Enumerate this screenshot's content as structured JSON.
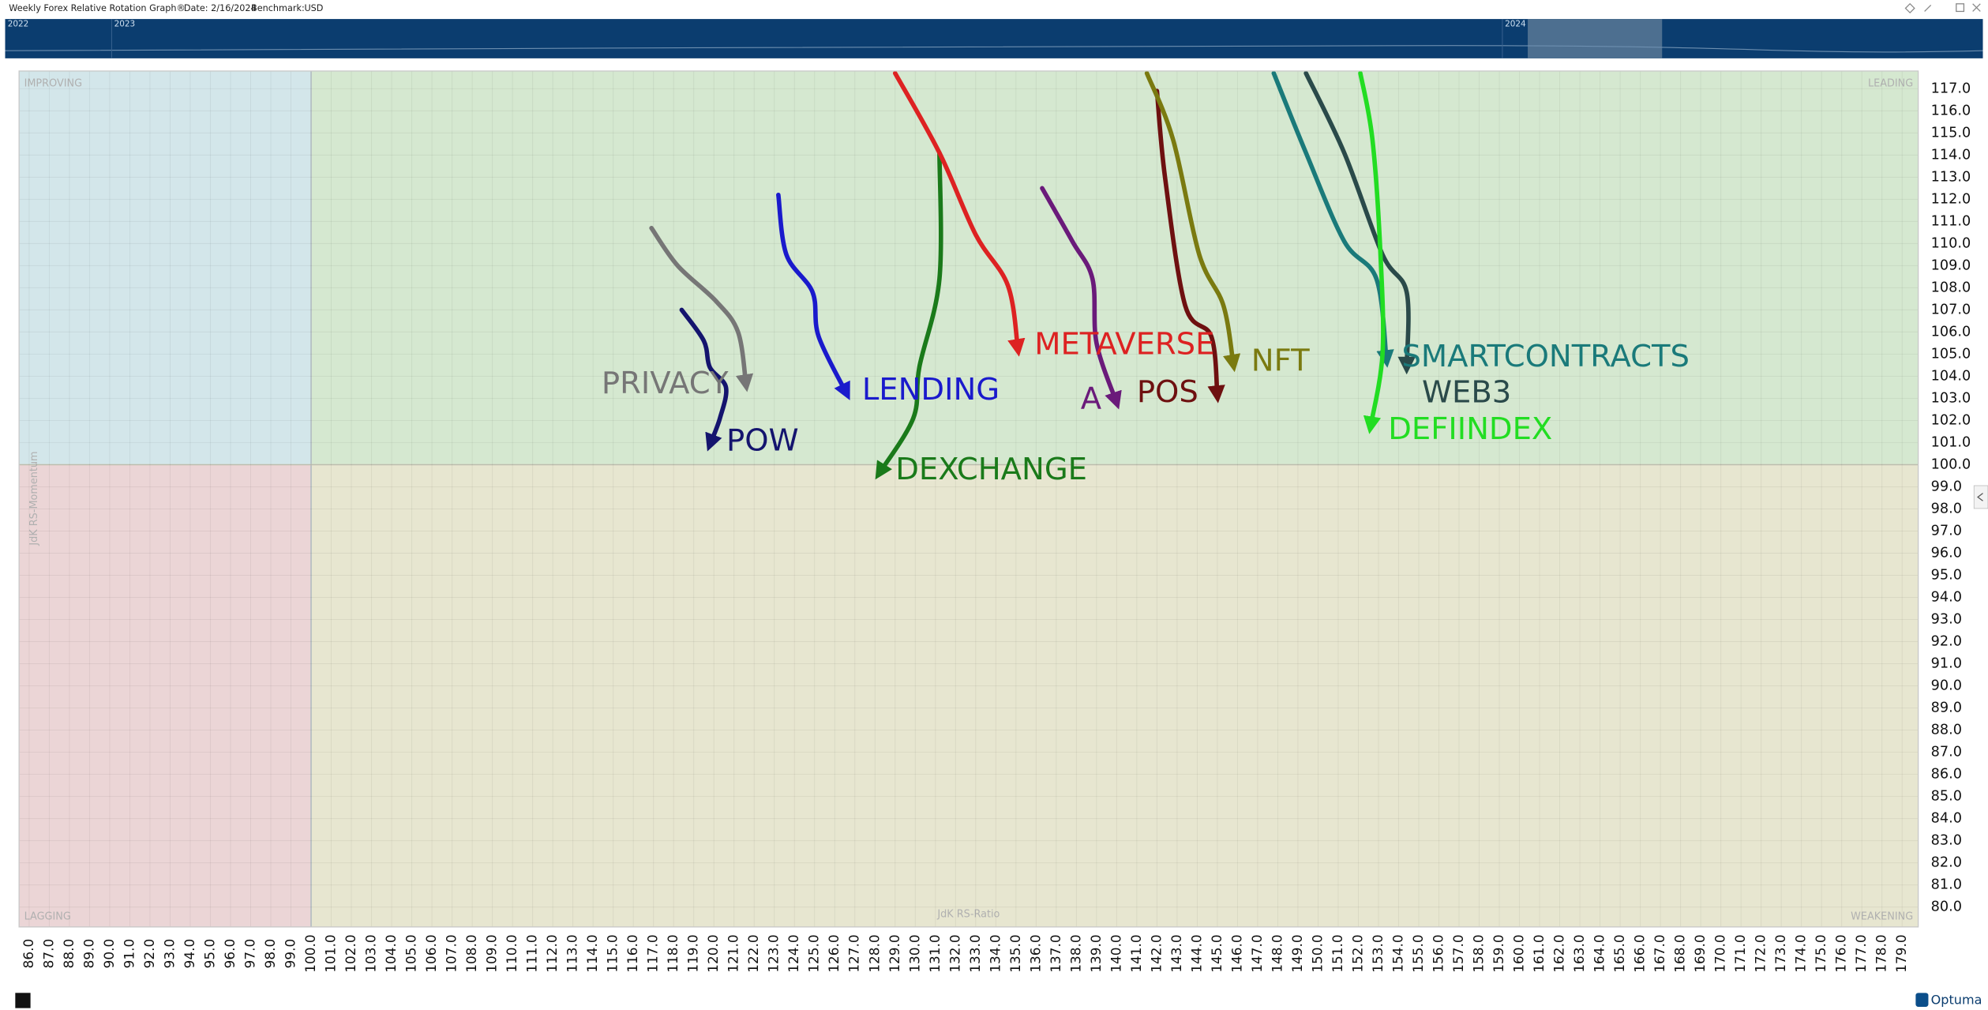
{
  "header": {
    "title": "Weekly Forex Relative Rotation Graph®",
    "date": "Date: 2/16/2024",
    "benchmark_label": "Benchmark:",
    "benchmark": "USD"
  },
  "timeline": {
    "labels": [
      "2022",
      "2023",
      "2024"
    ]
  },
  "brand": "Optuma",
  "chart_data": {
    "type": "line",
    "x_label": "JdK RS-Ratio",
    "y_label": "JdK RS-Momentum",
    "quadrants": {
      "improving": "IMPROVING",
      "leading": "LEADING",
      "lagging": "LAGGING",
      "weakening": "WEAKENING"
    },
    "quadrant_center": {
      "x": 100,
      "y": 100
    },
    "xlim": [
      85.5,
      179.8
    ],
    "ylim": [
      79.1,
      117.8
    ],
    "grid": true,
    "series": [
      {
        "name": "PRIVACY",
        "color": "#767676",
        "x": [
          116.9,
          118.2,
          120.1,
          121.2,
          121.6
        ],
        "y": [
          110.7,
          109.0,
          107.4,
          106.0,
          103.6
        ]
      },
      {
        "name": "POW",
        "color": "#14146e",
        "x": [
          118.4,
          119.5,
          119.8,
          120.6,
          120.3,
          119.8
        ],
        "y": [
          107.0,
          105.6,
          104.4,
          103.5,
          102.1,
          100.9
        ]
      },
      {
        "name": "LENDING",
        "color": "#1a1acc",
        "x": [
          123.2,
          123.6,
          124.9,
          125.2,
          126.6
        ],
        "y": [
          112.2,
          109.5,
          107.8,
          105.8,
          103.2
        ]
      },
      {
        "name": "DEXCHANGE",
        "color": "#1a7a1a",
        "x": [
          131.2,
          131.2,
          130.2,
          129.9,
          128.2
        ],
        "y": [
          114.1,
          108.4,
          104.4,
          102.1,
          99.6
        ]
      },
      {
        "name": "METAVERSE",
        "color": "#dd2222",
        "x": [
          129.0,
          131.2,
          133.0,
          134.6,
          135.1
        ],
        "y": [
          117.7,
          114.1,
          110.4,
          108.1,
          105.2
        ]
      },
      {
        "name": "A",
        "color": "#6a1a7a",
        "x": [
          136.3,
          137.8,
          138.8,
          139.0,
          140.0
        ],
        "y": [
          112.5,
          110.1,
          108.4,
          105.5,
          102.8
        ]
      },
      {
        "name": "POS",
        "color": "#6e1010",
        "x": [
          142.0,
          142.4,
          143.4,
          144.7,
          145.0
        ],
        "y": [
          116.9,
          113.0,
          107.2,
          105.8,
          103.1
        ]
      },
      {
        "name": "NFT",
        "color": "#7a7a10",
        "x": [
          141.5,
          142.8,
          144.1,
          145.3,
          145.8
        ],
        "y": [
          117.7,
          114.7,
          109.5,
          107.2,
          104.5
        ]
      },
      {
        "name": "SMARTCONTRACTS",
        "color": "#1a7a7a",
        "x": [
          147.8,
          149.4,
          151.3,
          152.9,
          153.4
        ],
        "y": [
          117.7,
          114.1,
          110.1,
          108.4,
          104.7
        ]
      },
      {
        "name": "WEB3",
        "color": "#2a4a4a",
        "x": [
          149.4,
          151.3,
          153.2,
          154.4,
          154.4
        ],
        "y": [
          117.7,
          114.1,
          109.5,
          107.8,
          104.4
        ]
      },
      {
        "name": "DEFIINDEX",
        "color": "#22dd22",
        "x": [
          152.1,
          152.7,
          153.1,
          153.2,
          152.6
        ],
        "y": [
          117.7,
          114.7,
          109.5,
          105.0,
          101.7
        ]
      }
    ],
    "xticks": [
      {
        "value": 86,
        "label": "86.0"
      },
      {
        "value": 87,
        "label": "87.0"
      },
      {
        "value": 88,
        "label": "88.0"
      },
      {
        "value": 89,
        "label": "89.0"
      },
      {
        "value": 90,
        "label": "90.0"
      },
      {
        "value": 91,
        "label": "91.0"
      },
      {
        "value": 92,
        "label": "92.0"
      },
      {
        "value": 93,
        "label": "93.0"
      },
      {
        "value": 94,
        "label": "94.0"
      },
      {
        "value": 95,
        "label": "95.0"
      },
      {
        "value": 96,
        "label": "96.0"
      },
      {
        "value": 97,
        "label": "97.0"
      },
      {
        "value": 98,
        "label": "98.0"
      },
      {
        "value": 99,
        "label": "99.0"
      },
      {
        "value": 100,
        "label": "100.0"
      },
      {
        "value": 101,
        "label": "101.0"
      },
      {
        "value": 102,
        "label": "102.0"
      },
      {
        "value": 103,
        "label": "103.0"
      },
      {
        "value": 104,
        "label": "104.0"
      },
      {
        "value": 105,
        "label": "105.0"
      },
      {
        "value": 106,
        "label": "106.0"
      },
      {
        "value": 107,
        "label": "107.0"
      },
      {
        "value": 108,
        "label": "108.0"
      },
      {
        "value": 109,
        "label": "109.0"
      },
      {
        "value": 110,
        "label": "110.0"
      },
      {
        "value": 111,
        "label": "111.0"
      },
      {
        "value": 112,
        "label": "112.0"
      },
      {
        "value": 113,
        "label": "113.0"
      },
      {
        "value": 114,
        "label": "114.0"
      },
      {
        "value": 115,
        "label": "115.0"
      },
      {
        "value": 116,
        "label": "116.0"
      },
      {
        "value": 117,
        "label": "117.0"
      },
      {
        "value": 118,
        "label": "118.0"
      },
      {
        "value": 119,
        "label": "119.0"
      },
      {
        "value": 120,
        "label": "120.0"
      },
      {
        "value": 121,
        "label": "121.0"
      },
      {
        "value": 122,
        "label": "122.0"
      },
      {
        "value": 123,
        "label": "123.0"
      },
      {
        "value": 124,
        "label": "124.0"
      },
      {
        "value": 125,
        "label": "125.0"
      },
      {
        "value": 126,
        "label": "126.0"
      },
      {
        "value": 127,
        "label": "127.0"
      },
      {
        "value": 128,
        "label": "128.0"
      },
      {
        "value": 129,
        "label": "129.0"
      },
      {
        "value": 130,
        "label": "130.0"
      },
      {
        "value": 131,
        "label": "131.0"
      },
      {
        "value": 132,
        "label": "132.0"
      },
      {
        "value": 133,
        "label": "133.0"
      },
      {
        "value": 134,
        "label": "134.0"
      },
      {
        "value": 135,
        "label": "135.0"
      },
      {
        "value": 136,
        "label": "136.0"
      },
      {
        "value": 137,
        "label": "137.0"
      },
      {
        "value": 138,
        "label": "138.0"
      },
      {
        "value": 139,
        "label": "139.0"
      },
      {
        "value": 140,
        "label": "140.0"
      },
      {
        "value": 141,
        "label": "141.0"
      },
      {
        "value": 142,
        "label": "142.0"
      },
      {
        "value": 143,
        "label": "143.0"
      },
      {
        "value": 144,
        "label": "144.0"
      },
      {
        "value": 145,
        "label": "145.0"
      },
      {
        "value": 146,
        "label": "146.0"
      },
      {
        "value": 147,
        "label": "147.0"
      },
      {
        "value": 148,
        "label": "148.0"
      },
      {
        "value": 149,
        "label": "149.0"
      },
      {
        "value": 150,
        "label": "150.0"
      },
      {
        "value": 151,
        "label": "151.0"
      },
      {
        "value": 152,
        "label": "152.0"
      },
      {
        "value": 153,
        "label": "153.0"
      },
      {
        "value": 154,
        "label": "154.0"
      },
      {
        "value": 155,
        "label": "155.0"
      },
      {
        "value": 156,
        "label": "156.0"
      },
      {
        "value": 157,
        "label": "157.0"
      },
      {
        "value": 158,
        "label": "158.0"
      },
      {
        "value": 159,
        "label": "159.0"
      },
      {
        "value": 160,
        "label": "160.0"
      },
      {
        "value": 161,
        "label": "161.0"
      },
      {
        "value": 162,
        "label": "162.0"
      },
      {
        "value": 163,
        "label": "163.0"
      },
      {
        "value": 164,
        "label": "164.0"
      },
      {
        "value": 165,
        "label": "165.0"
      },
      {
        "value": 166,
        "label": "166.0"
      },
      {
        "value": 167,
        "label": "167.0"
      },
      {
        "value": 168,
        "label": "168.0"
      },
      {
        "value": 169,
        "label": "169.0"
      },
      {
        "value": 170,
        "label": "170.0"
      },
      {
        "value": 171,
        "label": "171.0"
      },
      {
        "value": 172,
        "label": "172.0"
      },
      {
        "value": 173,
        "label": "173.0"
      },
      {
        "value": 174,
        "label": "174.0"
      },
      {
        "value": 175,
        "label": "175.0"
      },
      {
        "value": 176,
        "label": "176.0"
      },
      {
        "value": 177,
        "label": "177.0"
      },
      {
        "value": 178,
        "label": "178.0"
      },
      {
        "value": 179,
        "label": "179.0"
      }
    ],
    "yticks": [
      {
        "value": 80,
        "label": "80.0"
      },
      {
        "value": 81,
        "label": "81.0"
      },
      {
        "value": 82,
        "label": "82.0"
      },
      {
        "value": 83,
        "label": "83.0"
      },
      {
        "value": 84,
        "label": "84.0"
      },
      {
        "value": 85,
        "label": "85.0"
      },
      {
        "value": 86,
        "label": "86.0"
      },
      {
        "value": 87,
        "label": "87.0"
      },
      {
        "value": 88,
        "label": "88.0"
      },
      {
        "value": 89,
        "label": "89.0"
      },
      {
        "value": 90,
        "label": "90.0"
      },
      {
        "value": 91,
        "label": "91.0"
      },
      {
        "value": 92,
        "label": "92.0"
      },
      {
        "value": 93,
        "label": "93.0"
      },
      {
        "value": 94,
        "label": "94.0"
      },
      {
        "value": 95,
        "label": "95.0"
      },
      {
        "value": 96,
        "label": "96.0"
      },
      {
        "value": 97,
        "label": "97.0"
      },
      {
        "value": 98,
        "label": "98.0"
      },
      {
        "value": 99,
        "label": "99.0"
      },
      {
        "value": 100,
        "label": "100.0"
      },
      {
        "value": 101,
        "label": "101.0"
      },
      {
        "value": 102,
        "label": "102.0"
      },
      {
        "value": 103,
        "label": "103.0"
      },
      {
        "value": 104,
        "label": "104.0"
      },
      {
        "value": 105,
        "label": "105.0"
      },
      {
        "value": 106,
        "label": "106.0"
      },
      {
        "value": 107,
        "label": "107.0"
      },
      {
        "value": 108,
        "label": "108.0"
      },
      {
        "value": 109,
        "label": "109.0"
      },
      {
        "value": 110,
        "label": "110.0"
      },
      {
        "value": 111,
        "label": "111.0"
      },
      {
        "value": 112,
        "label": "112.0"
      },
      {
        "value": 113,
        "label": "113.0"
      },
      {
        "value": 114,
        "label": "114.0"
      },
      {
        "value": 115,
        "label": "115.0"
      },
      {
        "value": 116,
        "label": "116.0"
      },
      {
        "value": 117,
        "label": "117.0"
      }
    ]
  }
}
